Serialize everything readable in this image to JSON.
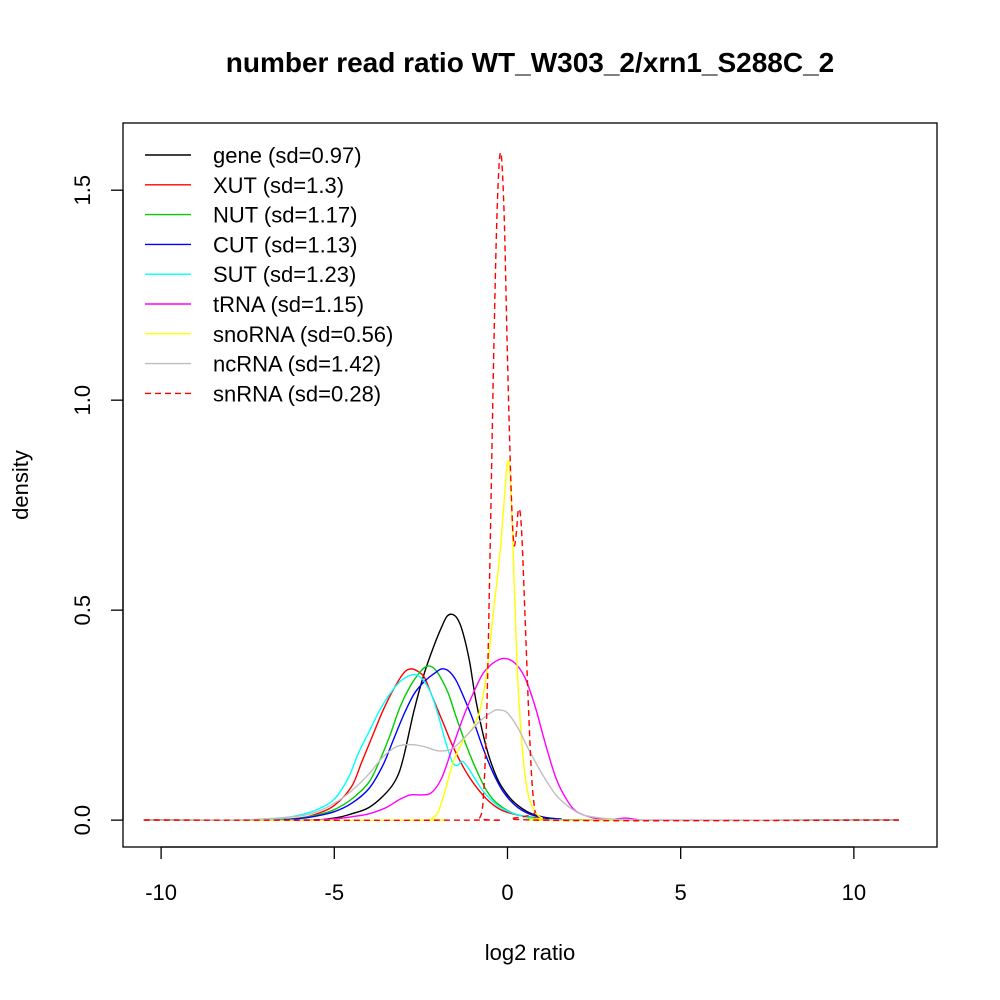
{
  "chart_data": {
    "type": "line",
    "title": "number read ratio WT_W303_2/xrn1_S288C_2",
    "xlabel": "log2 ratio",
    "ylabel": "density",
    "xlim": [
      -11.1,
      12.4
    ],
    "ylim": [
      -0.064,
      1.66
    ],
    "x_ticks": [
      -10,
      -5,
      0,
      5,
      10
    ],
    "x_tick_labels": [
      "-10",
      "-5",
      "0",
      "5",
      "10"
    ],
    "y_ticks": [
      0,
      0.5,
      1.0,
      1.5
    ],
    "y_tick_labels": [
      "0.0",
      "0.5",
      "1.0",
      "1.5"
    ],
    "grid": false,
    "legend_position": "top-left",
    "series": [
      {
        "name": "gene (sd=0.97)",
        "color": "#000000",
        "dash": "solid",
        "points": [
          [
            -10.5,
            0
          ],
          [
            -6,
            0
          ],
          [
            -5,
            0.005
          ],
          [
            -4.5,
            0.015
          ],
          [
            -4,
            0.03
          ],
          [
            -3.5,
            0.065
          ],
          [
            -3.2,
            0.1
          ],
          [
            -3,
            0.15
          ],
          [
            -2.7,
            0.26
          ],
          [
            -2.4,
            0.35
          ],
          [
            -2.1,
            0.42
          ],
          [
            -1.9,
            0.46
          ],
          [
            -1.75,
            0.485
          ],
          [
            -1.6,
            0.49
          ],
          [
            -1.45,
            0.48
          ],
          [
            -1.3,
            0.45
          ],
          [
            -1.1,
            0.38
          ],
          [
            -0.9,
            0.28
          ],
          [
            -0.6,
            0.17
          ],
          [
            -0.3,
            0.1
          ],
          [
            0,
            0.06
          ],
          [
            0.3,
            0.035
          ],
          [
            0.7,
            0.015
          ],
          [
            1.2,
            0.005
          ],
          [
            2,
            0
          ],
          [
            11.3,
            0
          ]
        ]
      },
      {
        "name": "XUT (sd=1.3)",
        "color": "#ff0000",
        "dash": "solid",
        "points": [
          [
            -10.5,
            0
          ],
          [
            -7,
            0
          ],
          [
            -6,
            0.005
          ],
          [
            -5.5,
            0.015
          ],
          [
            -5,
            0.035
          ],
          [
            -4.5,
            0.08
          ],
          [
            -4.2,
            0.14
          ],
          [
            -3.9,
            0.2
          ],
          [
            -3.6,
            0.26
          ],
          [
            -3.3,
            0.31
          ],
          [
            -3.0,
            0.35
          ],
          [
            -2.8,
            0.36
          ],
          [
            -2.6,
            0.355
          ],
          [
            -2.4,
            0.34
          ],
          [
            -2.2,
            0.3
          ],
          [
            -2.0,
            0.26
          ],
          [
            -1.8,
            0.22
          ],
          [
            -1.6,
            0.18
          ],
          [
            -1.3,
            0.13
          ],
          [
            -1.0,
            0.09
          ],
          [
            -0.6,
            0.05
          ],
          [
            -0.2,
            0.025
          ],
          [
            0.3,
            0.012
          ],
          [
            1,
            0.004
          ],
          [
            2,
            0
          ],
          [
            11.3,
            0
          ]
        ]
      },
      {
        "name": "NUT (sd=1.17)",
        "color": "#00cc00",
        "dash": "solid",
        "points": [
          [
            -10.5,
            0
          ],
          [
            -7,
            0
          ],
          [
            -6,
            0.005
          ],
          [
            -5.5,
            0.012
          ],
          [
            -5,
            0.025
          ],
          [
            -4.5,
            0.05
          ],
          [
            -4,
            0.09
          ],
          [
            -3.7,
            0.14
          ],
          [
            -3.4,
            0.2
          ],
          [
            -3.1,
            0.27
          ],
          [
            -2.8,
            0.32
          ],
          [
            -2.5,
            0.355
          ],
          [
            -2.3,
            0.367
          ],
          [
            -2.1,
            0.36
          ],
          [
            -1.9,
            0.335
          ],
          [
            -1.7,
            0.3
          ],
          [
            -1.5,
            0.25
          ],
          [
            -1.2,
            0.18
          ],
          [
            -0.9,
            0.12
          ],
          [
            -0.6,
            0.07
          ],
          [
            -0.3,
            0.04
          ],
          [
            0.2,
            0.015
          ],
          [
            0.8,
            0.005
          ],
          [
            1.5,
            0
          ],
          [
            11.3,
            0
          ]
        ]
      },
      {
        "name": "CUT (sd=1.13)",
        "color": "#0000ff",
        "dash": "solid",
        "points": [
          [
            -10.5,
            0
          ],
          [
            -7,
            0
          ],
          [
            -6,
            0.004
          ],
          [
            -5.5,
            0.01
          ],
          [
            -5,
            0.02
          ],
          [
            -4.5,
            0.04
          ],
          [
            -4,
            0.075
          ],
          [
            -3.6,
            0.13
          ],
          [
            -3.3,
            0.19
          ],
          [
            -3.0,
            0.25
          ],
          [
            -2.7,
            0.3
          ],
          [
            -2.4,
            0.33
          ],
          [
            -2.1,
            0.35
          ],
          [
            -1.9,
            0.36
          ],
          [
            -1.7,
            0.355
          ],
          [
            -1.5,
            0.335
          ],
          [
            -1.3,
            0.3
          ],
          [
            -1.0,
            0.24
          ],
          [
            -0.7,
            0.17
          ],
          [
            -0.4,
            0.11
          ],
          [
            -0.1,
            0.065
          ],
          [
            0.3,
            0.03
          ],
          [
            0.8,
            0.01
          ],
          [
            1.5,
            0.003
          ],
          [
            2.5,
            0
          ],
          [
            11.3,
            0
          ]
        ]
      },
      {
        "name": "SUT (sd=1.23)",
        "color": "#00ffff",
        "dash": "solid",
        "points": [
          [
            -10.5,
            0
          ],
          [
            -7.5,
            0
          ],
          [
            -6.5,
            0.005
          ],
          [
            -6,
            0.012
          ],
          [
            -5.5,
            0.025
          ],
          [
            -5,
            0.05
          ],
          [
            -4.6,
            0.1
          ],
          [
            -4.3,
            0.16
          ],
          [
            -4.0,
            0.21
          ],
          [
            -3.7,
            0.26
          ],
          [
            -3.4,
            0.3
          ],
          [
            -3.1,
            0.33
          ],
          [
            -2.8,
            0.345
          ],
          [
            -2.6,
            0.345
          ],
          [
            -2.4,
            0.33
          ],
          [
            -2.2,
            0.3
          ],
          [
            -2.0,
            0.25
          ],
          [
            -1.8,
            0.19
          ],
          [
            -1.6,
            0.14
          ],
          [
            -1.45,
            0.13
          ],
          [
            -1.3,
            0.14
          ],
          [
            -1.1,
            0.12
          ],
          [
            -0.8,
            0.08
          ],
          [
            -0.5,
            0.05
          ],
          [
            -0.2,
            0.03
          ],
          [
            0.2,
            0.015
          ],
          [
            0.7,
            0.005
          ],
          [
            1.5,
            0
          ],
          [
            11.3,
            0
          ]
        ]
      },
      {
        "name": "tRNA (sd=1.15)",
        "color": "#ff00ff",
        "dash": "solid",
        "points": [
          [
            -10.5,
            0
          ],
          [
            -6,
            0
          ],
          [
            -5,
            0.003
          ],
          [
            -4.5,
            0.008
          ],
          [
            -4,
            0.015
          ],
          [
            -3.5,
            0.03
          ],
          [
            -3.1,
            0.05
          ],
          [
            -2.8,
            0.06
          ],
          [
            -2.5,
            0.06
          ],
          [
            -2.2,
            0.065
          ],
          [
            -1.9,
            0.1
          ],
          [
            -1.6,
            0.17
          ],
          [
            -1.3,
            0.24
          ],
          [
            -1.0,
            0.3
          ],
          [
            -0.7,
            0.35
          ],
          [
            -0.4,
            0.375
          ],
          [
            -0.1,
            0.385
          ],
          [
            0.2,
            0.375
          ],
          [
            0.5,
            0.34
          ],
          [
            0.8,
            0.27
          ],
          [
            1.1,
            0.18
          ],
          [
            1.4,
            0.1
          ],
          [
            1.7,
            0.05
          ],
          [
            2.0,
            0.02
          ],
          [
            2.5,
            0.005
          ],
          [
            3,
            0.002
          ],
          [
            3.4,
            0.005
          ],
          [
            3.7,
            0.002
          ],
          [
            4.5,
            0
          ],
          [
            11.3,
            0
          ]
        ]
      },
      {
        "name": "snoRNA (sd=0.56)",
        "color": "#ffff00",
        "dash": "solid",
        "points": [
          [
            -10.5,
            0
          ],
          [
            -2.5,
            0
          ],
          [
            -2.2,
            0.003
          ],
          [
            -2.0,
            0.02
          ],
          [
            -1.8,
            0.07
          ],
          [
            -1.6,
            0.13
          ],
          [
            -1.4,
            0.17
          ],
          [
            -1.2,
            0.2
          ],
          [
            -1.0,
            0.22
          ],
          [
            -0.8,
            0.26
          ],
          [
            -0.6,
            0.35
          ],
          [
            -0.4,
            0.5
          ],
          [
            -0.2,
            0.65
          ],
          [
            0,
            0.85
          ],
          [
            0.1,
            0.78
          ],
          [
            0.2,
            0.55
          ],
          [
            0.3,
            0.33
          ],
          [
            0.45,
            0.15
          ],
          [
            0.6,
            0.06
          ],
          [
            0.8,
            0.02
          ],
          [
            1.0,
            0.005
          ],
          [
            1.3,
            0
          ],
          [
            11.3,
            0
          ]
        ]
      },
      {
        "name": "ncRNA (sd=1.42)",
        "color": "#bebebe",
        "dash": "solid",
        "points": [
          [
            -10.5,
            0
          ],
          [
            -8,
            0
          ],
          [
            -7,
            0.003
          ],
          [
            -6,
            0.01
          ],
          [
            -5.5,
            0.02
          ],
          [
            -5,
            0.04
          ],
          [
            -4.5,
            0.07
          ],
          [
            -4,
            0.11
          ],
          [
            -3.6,
            0.15
          ],
          [
            -3.2,
            0.175
          ],
          [
            -2.8,
            0.18
          ],
          [
            -2.4,
            0.175
          ],
          [
            -2.0,
            0.165
          ],
          [
            -1.6,
            0.17
          ],
          [
            -1.2,
            0.2
          ],
          [
            -0.8,
            0.235
          ],
          [
            -0.4,
            0.26
          ],
          [
            -0.2,
            0.262
          ],
          [
            0,
            0.255
          ],
          [
            0.3,
            0.22
          ],
          [
            0.6,
            0.17
          ],
          [
            1.0,
            0.11
          ],
          [
            1.4,
            0.06
          ],
          [
            1.8,
            0.03
          ],
          [
            2.2,
            0.012
          ],
          [
            2.8,
            0.004
          ],
          [
            3.5,
            0.001
          ],
          [
            4.5,
            0
          ],
          [
            11.3,
            0
          ]
        ]
      },
      {
        "name": "snRNA (sd=0.28)",
        "color": "#ff0000",
        "dash": "dashed",
        "points": [
          [
            -10.5,
            0
          ],
          [
            -0.9,
            0
          ],
          [
            -0.8,
            0.005
          ],
          [
            -0.7,
            0.05
          ],
          [
            -0.6,
            0.25
          ],
          [
            -0.5,
            0.65
          ],
          [
            -0.4,
            1.1
          ],
          [
            -0.3,
            1.45
          ],
          [
            -0.2,
            1.59
          ],
          [
            -0.1,
            1.45
          ],
          [
            0,
            1.1
          ],
          [
            0.1,
            0.8
          ],
          [
            0.18,
            0.66
          ],
          [
            0.25,
            0.68
          ],
          [
            0.32,
            0.74
          ],
          [
            0.4,
            0.7
          ],
          [
            0.5,
            0.5
          ],
          [
            0.6,
            0.28
          ],
          [
            0.7,
            0.1
          ],
          [
            0.8,
            0.02
          ],
          [
            0.9,
            0
          ],
          [
            11.3,
            0
          ]
        ]
      }
    ]
  }
}
